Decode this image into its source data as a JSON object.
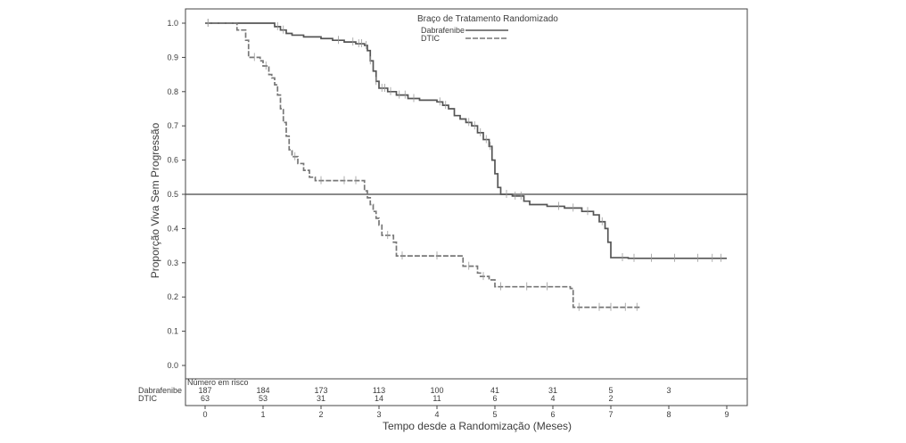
{
  "chart_data": {
    "type": "line",
    "ylabel": "Proporção Viva Sem Progressão",
    "xlabel": "Tempo desde a Randomização (Meses)",
    "xlim": [
      0,
      9
    ],
    "ylim": [
      0,
      1
    ],
    "x_ticks": [
      0,
      1,
      2,
      3,
      4,
      5,
      6,
      7,
      8,
      9
    ],
    "y_ticks": [
      0.0,
      0.1,
      0.2,
      0.3,
      0.4,
      0.5,
      0.6,
      0.7,
      0.8,
      0.9,
      1.0
    ],
    "y_tick_labels": [
      "0.0",
      "0.1",
      "0.2",
      "0.3",
      "0.4",
      "0.5",
      "0.6",
      "0.7",
      "0.8",
      "0.9",
      "1.0"
    ],
    "reference_line_y": 0.5,
    "grid": false,
    "legend": {
      "title": "Braço de Tratamento Randomizado",
      "placement": "top-center",
      "entries": [
        {
          "label": "Dabrafenibe",
          "style": "solid"
        },
        {
          "label": "DTIC",
          "style": "dashed"
        }
      ]
    },
    "series": [
      {
        "name": "Dabrafenibe",
        "style": "solid",
        "color": "#555555",
        "points": [
          [
            0,
            1.0
          ],
          [
            1.1,
            1.0
          ],
          [
            1.2,
            0.99
          ],
          [
            1.3,
            0.98
          ],
          [
            1.4,
            0.97
          ],
          [
            1.5,
            0.965
          ],
          [
            1.7,
            0.96
          ],
          [
            2.0,
            0.955
          ],
          [
            2.2,
            0.95
          ],
          [
            2.4,
            0.945
          ],
          [
            2.6,
            0.94
          ],
          [
            2.75,
            0.935
          ],
          [
            2.8,
            0.92
          ],
          [
            2.85,
            0.89
          ],
          [
            2.9,
            0.86
          ],
          [
            2.95,
            0.83
          ],
          [
            3.0,
            0.81
          ],
          [
            3.15,
            0.8
          ],
          [
            3.3,
            0.79
          ],
          [
            3.5,
            0.78
          ],
          [
            3.7,
            0.775
          ],
          [
            4.0,
            0.77
          ],
          [
            4.1,
            0.76
          ],
          [
            4.2,
            0.75
          ],
          [
            4.3,
            0.73
          ],
          [
            4.4,
            0.72
          ],
          [
            4.5,
            0.71
          ],
          [
            4.6,
            0.7
          ],
          [
            4.7,
            0.68
          ],
          [
            4.8,
            0.66
          ],
          [
            4.9,
            0.64
          ],
          [
            4.95,
            0.6
          ],
          [
            5.0,
            0.56
          ],
          [
            5.05,
            0.52
          ],
          [
            5.1,
            0.5
          ],
          [
            5.3,
            0.495
          ],
          [
            5.5,
            0.48
          ],
          [
            5.6,
            0.47
          ],
          [
            5.9,
            0.465
          ],
          [
            6.2,
            0.46
          ],
          [
            6.5,
            0.45
          ],
          [
            6.7,
            0.44
          ],
          [
            6.8,
            0.42
          ],
          [
            6.9,
            0.4
          ],
          [
            6.95,
            0.36
          ],
          [
            7.0,
            0.315
          ],
          [
            7.3,
            0.313
          ],
          [
            9.0,
            0.313
          ]
        ],
        "censor_x": [
          0.05,
          1.25,
          1.35,
          2.3,
          2.55,
          2.65,
          2.7,
          2.78,
          2.85,
          2.95,
          3.05,
          3.1,
          3.2,
          3.35,
          3.45,
          3.6,
          4.05,
          4.15,
          4.55,
          4.65,
          4.75,
          4.85,
          4.92,
          5.2,
          5.35,
          5.45,
          6.1,
          6.35,
          6.6,
          6.85,
          7.2,
          7.4,
          7.7,
          8.1,
          8.5,
          8.75,
          8.9
        ]
      },
      {
        "name": "DTIC",
        "style": "dashed",
        "color": "#777777",
        "points": [
          [
            0,
            1.0
          ],
          [
            0.5,
            1.0
          ],
          [
            0.55,
            0.98
          ],
          [
            0.7,
            0.95
          ],
          [
            0.75,
            0.9
          ],
          [
            0.95,
            0.89
          ],
          [
            1.0,
            0.875
          ],
          [
            1.1,
            0.85
          ],
          [
            1.15,
            0.84
          ],
          [
            1.2,
            0.82
          ],
          [
            1.25,
            0.79
          ],
          [
            1.3,
            0.75
          ],
          [
            1.35,
            0.71
          ],
          [
            1.4,
            0.67
          ],
          [
            1.45,
            0.63
          ],
          [
            1.5,
            0.61
          ],
          [
            1.6,
            0.59
          ],
          [
            1.7,
            0.57
          ],
          [
            1.8,
            0.55
          ],
          [
            1.9,
            0.54
          ],
          [
            2.7,
            0.54
          ],
          [
            2.75,
            0.51
          ],
          [
            2.8,
            0.49
          ],
          [
            2.85,
            0.47
          ],
          [
            2.9,
            0.45
          ],
          [
            2.95,
            0.43
          ],
          [
            3.0,
            0.41
          ],
          [
            3.05,
            0.38
          ],
          [
            3.25,
            0.36
          ],
          [
            3.3,
            0.32
          ],
          [
            4.4,
            0.32
          ],
          [
            4.45,
            0.29
          ],
          [
            4.7,
            0.27
          ],
          [
            4.75,
            0.26
          ],
          [
            4.9,
            0.25
          ],
          [
            5.0,
            0.23
          ],
          [
            6.3,
            0.225
          ],
          [
            6.35,
            0.17
          ],
          [
            7.5,
            0.167
          ]
        ],
        "censor_x": [
          0.05,
          0.85,
          1.05,
          1.55,
          2.0,
          2.4,
          2.6,
          3.15,
          3.4,
          4.0,
          4.55,
          4.8,
          5.1,
          5.55,
          5.9,
          6.45,
          6.8,
          7.0,
          7.25,
          7.45
        ]
      }
    ],
    "risk_table": {
      "title": "Número em risco",
      "times": [
        0,
        1,
        2,
        3,
        4,
        5,
        6,
        7,
        8
      ],
      "rows": [
        {
          "label": "Dabrafenibe",
          "values": [
            "187",
            "184",
            "173",
            "113",
            "100",
            "41",
            "31",
            "5",
            "3"
          ]
        },
        {
          "label": "DTIC",
          "values": [
            "63",
            "53",
            "31",
            "14",
            "11",
            "6",
            "4",
            "2",
            ""
          ]
        }
      ]
    }
  }
}
